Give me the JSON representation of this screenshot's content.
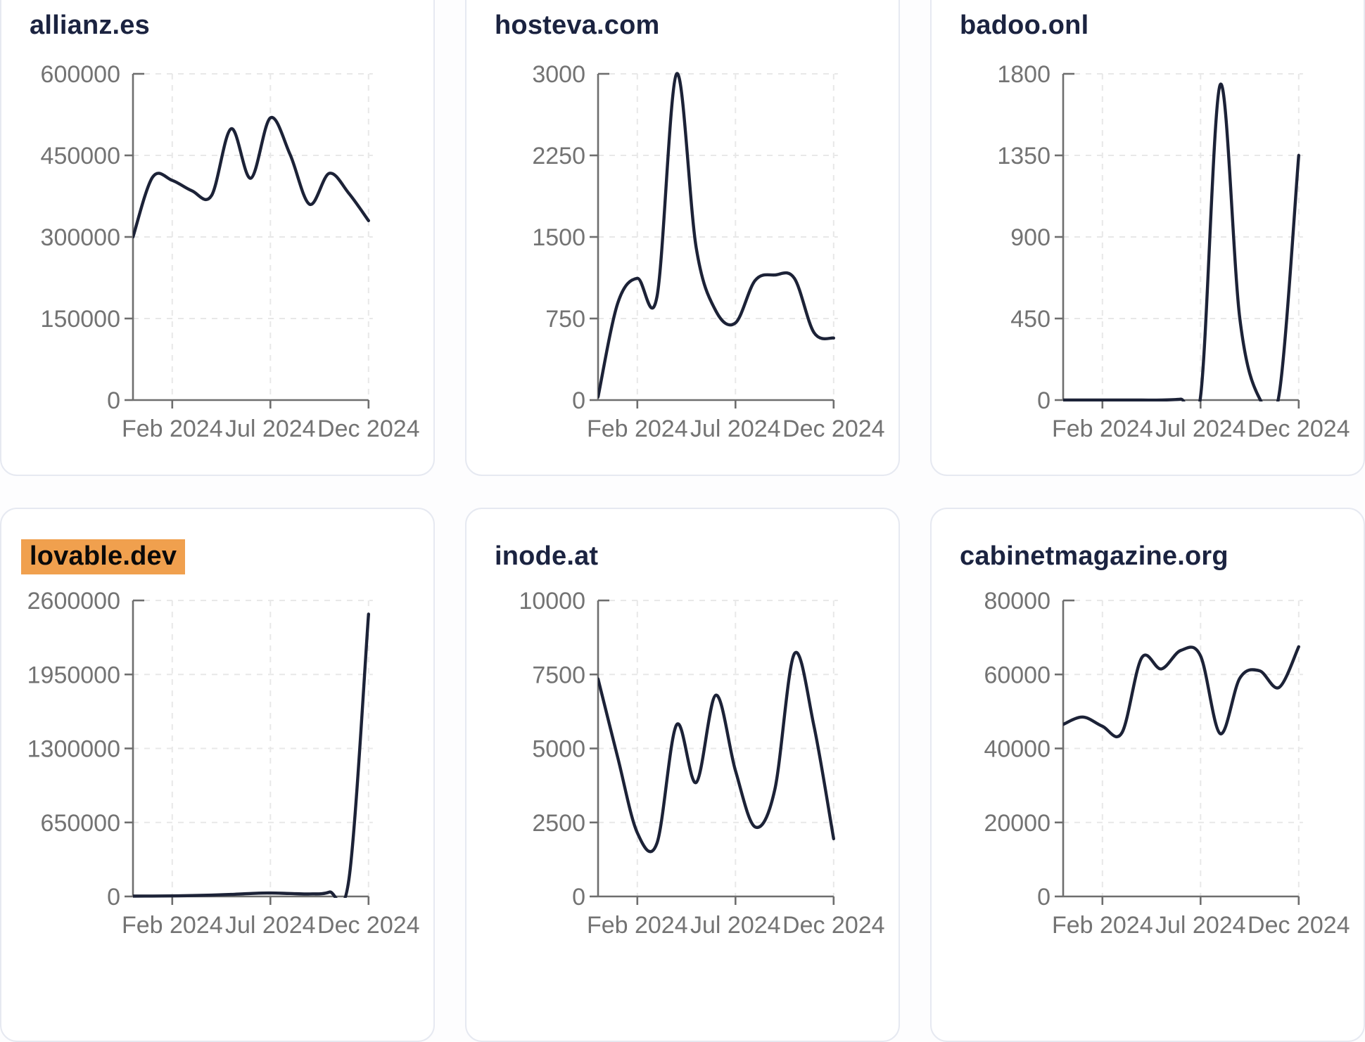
{
  "page_title": "Domain traffic charts",
  "colors": {
    "line": "#1c2237",
    "axis": "#6e6e6e",
    "tick_label": "#737373",
    "grid": "#e8e8e8",
    "card_title": "#1b2340",
    "card_border": "#e6e9f1",
    "card_bg": "#ffffff",
    "highlight_bg": "#f0a04e",
    "highlight_text": "#0a0a0a"
  },
  "x_tick_labels": [
    "Feb 2024",
    "Jul 2024",
    "Dec 2024"
  ],
  "chart_data": [
    {
      "type": "line",
      "title": "allianz.es",
      "title_highlighted": false,
      "x": [
        "Dec 2023",
        "Jan 2024",
        "Feb 2024",
        "Mar 2024",
        "Apr 2024",
        "May 2024",
        "Jun 2024",
        "Jul 2024",
        "Aug 2024",
        "Sep 2024",
        "Oct 2024",
        "Nov 2024",
        "Dec 2024"
      ],
      "values": [
        300000,
        410000,
        404000,
        385000,
        376000,
        499000,
        408000,
        519000,
        452000,
        360000,
        417000,
        380000,
        330000
      ],
      "x_tick_labels": [
        "Feb 2024",
        "Jul 2024",
        "Dec 2024"
      ],
      "y_ticks": [
        0,
        150000,
        300000,
        450000,
        600000
      ],
      "y_tick_labels": [
        "0",
        "150000",
        "300000",
        "450000",
        "600000"
      ],
      "ylim": [
        0,
        600000
      ],
      "grid": true,
      "legend": false
    },
    {
      "type": "line",
      "title": "hosteva.com",
      "title_highlighted": false,
      "x": [
        "Dec 2023",
        "Jan 2024",
        "Feb 2024",
        "Mar 2024",
        "Apr 2024",
        "May 2024",
        "Jun 2024",
        "Jul 2024",
        "Aug 2024",
        "Sep 2024",
        "Oct 2024",
        "Nov 2024",
        "Dec 2024"
      ],
      "values": [
        30,
        890,
        1120,
        950,
        3000,
        1400,
        820,
        710,
        1100,
        1150,
        1120,
        620,
        570
      ],
      "x_tick_labels": [
        "Feb 2024",
        "Jul 2024",
        "Dec 2024"
      ],
      "y_ticks": [
        0,
        750,
        1500,
        2250,
        3000
      ],
      "y_tick_labels": [
        "0",
        "750",
        "1500",
        "2250",
        "3000"
      ],
      "ylim": [
        0,
        3000
      ],
      "grid": true,
      "legend": false
    },
    {
      "type": "line",
      "title": "badoo.onl",
      "title_highlighted": false,
      "x": [
        "Dec 2023",
        "Jan 2024",
        "Feb 2024",
        "Mar 2024",
        "Apr 2024",
        "May 2024",
        "Jun 2024",
        "Jul 2024",
        "Aug 2024",
        "Sep 2024",
        "Oct 2024",
        "Nov 2024",
        "Dec 2024"
      ],
      "values": [
        0,
        0,
        0,
        0,
        0,
        0,
        5,
        20,
        1740,
        450,
        10,
        30,
        1350
      ],
      "x_tick_labels": [
        "Feb 2024",
        "Jul 2024",
        "Dec 2024"
      ],
      "y_ticks": [
        0,
        450,
        900,
        1350,
        1800
      ],
      "y_tick_labels": [
        "0",
        "450",
        "900",
        "1350",
        "1800"
      ],
      "ylim": [
        0,
        1800
      ],
      "grid": true,
      "legend": false
    },
    {
      "type": "line",
      "title": "lovable.dev",
      "title_highlighted": true,
      "x": [
        "Dec 2023",
        "Jan 2024",
        "Feb 2024",
        "Mar 2024",
        "Apr 2024",
        "May 2024",
        "Jun 2024",
        "Jul 2024",
        "Aug 2024",
        "Sep 2024",
        "Oct 2024",
        "Nov 2024",
        "Dec 2024"
      ],
      "values": [
        3000,
        4000,
        5000,
        8000,
        12000,
        18000,
        26000,
        30000,
        26000,
        22000,
        38000,
        150000,
        2480000
      ],
      "x_tick_labels": [
        "Feb 2024",
        "Jul 2024",
        "Dec 2024"
      ],
      "y_ticks": [
        0,
        650000,
        1300000,
        1950000,
        2600000
      ],
      "y_tick_labels": [
        "0",
        "650000",
        "1300000",
        "1950000",
        "2600000"
      ],
      "ylim": [
        0,
        2600000
      ],
      "grid": true,
      "legend": false
    },
    {
      "type": "line",
      "title": "inode.at",
      "title_highlighted": false,
      "x": [
        "Dec 2023",
        "Jan 2024",
        "Feb 2024",
        "Mar 2024",
        "Apr 2024",
        "May 2024",
        "Jun 2024",
        "Jul 2024",
        "Aug 2024",
        "Sep 2024",
        "Oct 2024",
        "Nov 2024",
        "Dec 2024"
      ],
      "values": [
        7350,
        4700,
        2150,
        1800,
        5800,
        3850,
        6800,
        4250,
        2350,
        3600,
        8200,
        5750,
        1950
      ],
      "x_tick_labels": [
        "Feb 2024",
        "Jul 2024",
        "Dec 2024"
      ],
      "y_ticks": [
        0,
        2500,
        5000,
        7500,
        10000
      ],
      "y_tick_labels": [
        "0",
        "2500",
        "5000",
        "7500",
        "10000"
      ],
      "ylim": [
        0,
        10000
      ],
      "grid": true,
      "legend": false
    },
    {
      "type": "line",
      "title": "cabinetmagazine.org",
      "title_highlighted": false,
      "x": [
        "Dec 2023",
        "Jan 2024",
        "Feb 2024",
        "Mar 2024",
        "Apr 2024",
        "May 2024",
        "Jun 2024",
        "Jul 2024",
        "Aug 2024",
        "Sep 2024",
        "Oct 2024",
        "Nov 2024",
        "Dec 2024"
      ],
      "values": [
        46500,
        48500,
        46000,
        44300,
        64500,
        61500,
        66500,
        65000,
        44000,
        59000,
        61000,
        56500,
        67500
      ],
      "x_tick_labels": [
        "Feb 2024",
        "Jul 2024",
        "Dec 2024"
      ],
      "y_ticks": [
        0,
        20000,
        40000,
        60000,
        80000
      ],
      "y_tick_labels": [
        "0",
        "20000",
        "40000",
        "60000",
        "80000"
      ],
      "ylim": [
        0,
        80000
      ],
      "grid": true,
      "legend": false
    }
  ]
}
